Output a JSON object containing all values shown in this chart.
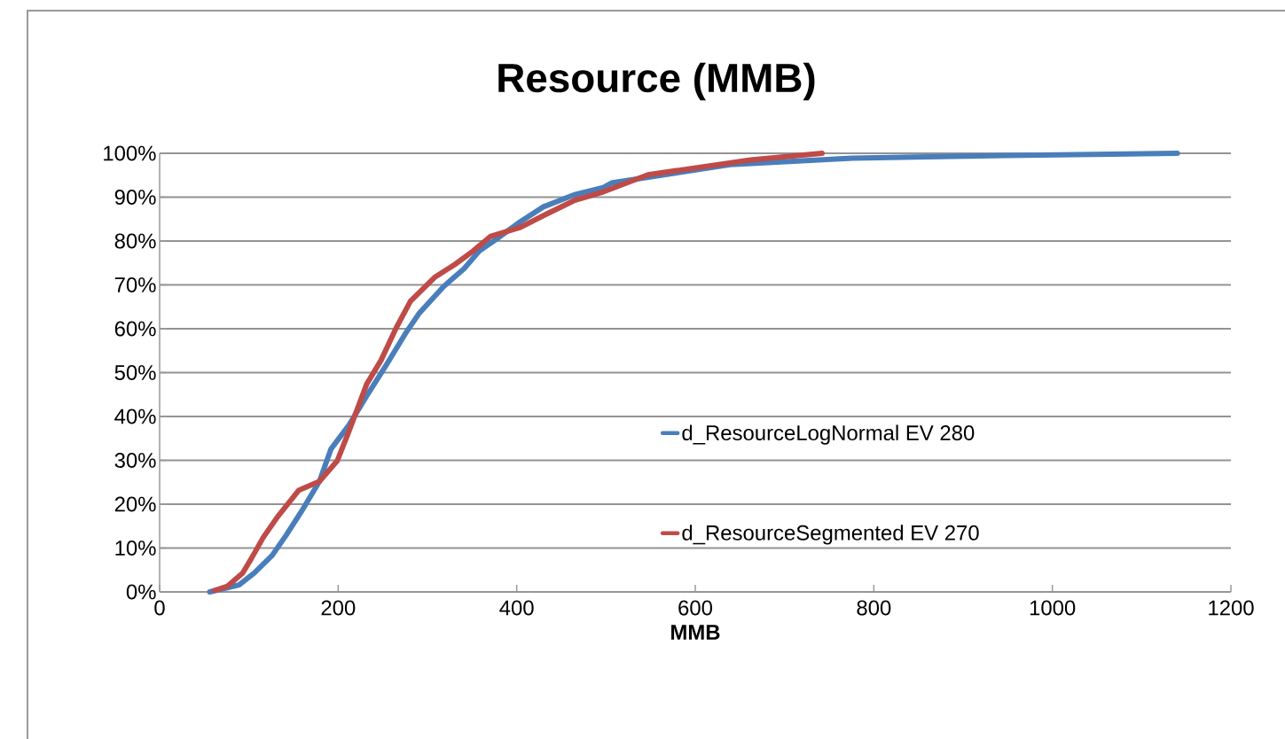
{
  "chart_data": {
    "type": "line",
    "title": "Resource (MMB)",
    "xlabel": "MMB",
    "xlim": [
      0,
      1200
    ],
    "xticks": [
      0,
      200,
      400,
      600,
      800,
      1000,
      1200
    ],
    "ylim": [
      0,
      100
    ],
    "yticks": [
      {
        "value": 0,
        "label": "0%"
      },
      {
        "value": 10,
        "label": "10%"
      },
      {
        "value": 20,
        "label": "20%"
      },
      {
        "value": 30,
        "label": "30%"
      },
      {
        "value": 40,
        "label": "40%"
      },
      {
        "value": 50,
        "label": "50%"
      },
      {
        "value": 60,
        "label": "60%"
      },
      {
        "value": 70,
        "label": "70%"
      },
      {
        "value": 80,
        "label": "80%"
      },
      {
        "value": 90,
        "label": "90%"
      },
      {
        "value": 100,
        "label": "100%"
      }
    ],
    "grid": "y",
    "legend": "right",
    "marker": "none",
    "line_style": "solid",
    "series": [
      {
        "name": "d_ResourceLogNormal EV 280",
        "color": "#4a7ebb",
        "x": [
          56,
          89,
          106,
          126,
          142,
          159,
          179,
          192,
          212,
          232,
          255,
          275,
          291,
          318,
          341,
          358,
          377,
          404,
          430,
          464,
          497,
          507,
          639,
          776,
          948,
          1140
        ],
        "values": [
          0,
          1.6,
          4.3,
          8.3,
          13,
          18.4,
          25.2,
          32.6,
          38,
          44.7,
          52.1,
          58.8,
          63.6,
          69.6,
          73.7,
          77.7,
          80.4,
          84.4,
          87.8,
          90.5,
          92.2,
          93.3,
          97.4,
          98.9,
          99.5,
          100
        ]
      },
      {
        "name": "d_ResourceSegmented EV 270",
        "color": "#be4b48",
        "x": [
          61,
          76,
          93,
          103,
          116,
          132,
          156,
          179,
          199,
          212,
          232,
          248,
          265,
          281,
          308,
          331,
          351,
          371,
          404,
          430,
          464,
          497,
          547,
          662,
          742
        ],
        "values": [
          0.3,
          1.3,
          4.3,
          7.7,
          12.4,
          17.1,
          23.2,
          25.2,
          29.9,
          36.6,
          47.4,
          52.8,
          60.2,
          66.3,
          71.7,
          74.7,
          77.7,
          81.1,
          83.1,
          85.8,
          89.2,
          91.2,
          95.1,
          98.5,
          100
        ]
      }
    ]
  }
}
